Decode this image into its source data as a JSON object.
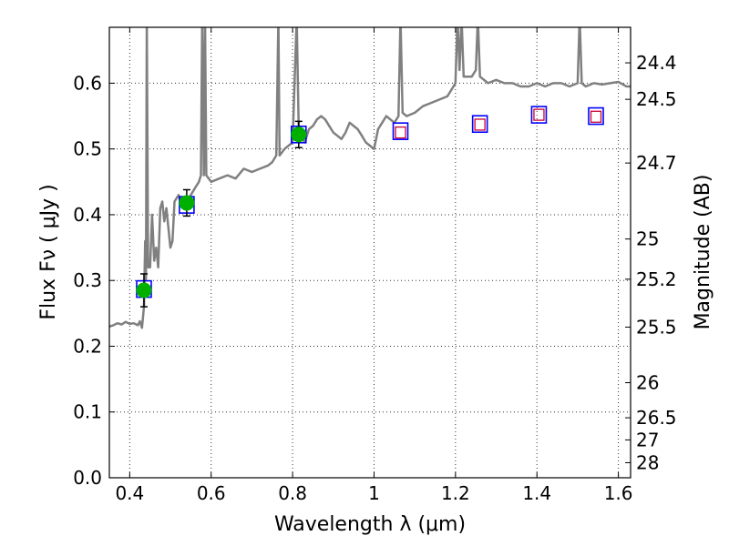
{
  "chart_data": {
    "type": "scatter",
    "xlabel": "Wavelength  λ (μm)",
    "ylabel": "Flux  Fν  ( μJy )",
    "ylabel_right": "Magnitude (AB)",
    "xlim": [
      0.35,
      1.63
    ],
    "ylim": [
      0.0,
      0.685
    ],
    "x_ticks": [
      0.4,
      0.6,
      0.8,
      1.0,
      1.2,
      1.4,
      1.6
    ],
    "x_tick_labels": [
      "0.4",
      "0.6",
      "0.8",
      "1",
      "1.2",
      "1.4",
      "1.6"
    ],
    "y_ticks": [
      0.0,
      0.1,
      0.2,
      0.3,
      0.4,
      0.5,
      0.6
    ],
    "y_tick_labels": [
      "0.0",
      "0.1",
      "0.2",
      "0.3",
      "0.4",
      "0.5",
      "0.6"
    ],
    "right_ticks": [
      {
        "mag": 24.4,
        "label": "24.4"
      },
      {
        "mag": 24.5,
        "label": "24.5"
      },
      {
        "mag": 24.7,
        "label": "24.7"
      },
      {
        "mag": 25.0,
        "label": "25"
      },
      {
        "mag": 25.2,
        "label": "25.2"
      },
      {
        "mag": 25.5,
        "label": "25.5"
      },
      {
        "mag": 26.0,
        "label": "26"
      },
      {
        "mag": 26.5,
        "label": "26.5"
      },
      {
        "mag": 27.0,
        "label": "27"
      },
      {
        "mag": 28.0,
        "label": "28"
      }
    ],
    "grid": true,
    "colors": {
      "spectrum": "#808080",
      "observed_fill": "#00b000",
      "model_box": "#0000ff",
      "upper_box": "#cc0033",
      "errorbar": "#000000"
    },
    "series": [
      {
        "kind": "spectrum",
        "points": [
          [
            0.35,
            0.23
          ],
          [
            0.36,
            0.232
          ],
          [
            0.37,
            0.235
          ],
          [
            0.38,
            0.233
          ],
          [
            0.39,
            0.237
          ],
          [
            0.4,
            0.234
          ],
          [
            0.41,
            0.235
          ],
          [
            0.42,
            0.232
          ],
          [
            0.425,
            0.238
          ],
          [
            0.43,
            0.228
          ],
          [
            0.435,
            0.26
          ],
          [
            0.438,
            0.36
          ],
          [
            0.44,
            0.3
          ],
          [
            0.442,
            0.7
          ],
          [
            0.445,
            0.32
          ],
          [
            0.45,
            0.32
          ],
          [
            0.455,
            0.4
          ],
          [
            0.46,
            0.33
          ],
          [
            0.465,
            0.35
          ],
          [
            0.47,
            0.32
          ],
          [
            0.475,
            0.41
          ],
          [
            0.48,
            0.42
          ],
          [
            0.485,
            0.39
          ],
          [
            0.49,
            0.41
          ],
          [
            0.5,
            0.35
          ],
          [
            0.505,
            0.36
          ],
          [
            0.51,
            0.42
          ],
          [
            0.52,
            0.43
          ],
          [
            0.53,
            0.41
          ],
          [
            0.54,
            0.42
          ],
          [
            0.55,
            0.43
          ],
          [
            0.56,
            0.44
          ],
          [
            0.57,
            0.45
          ],
          [
            0.575,
            0.46
          ],
          [
            0.578,
            0.7
          ],
          [
            0.582,
            0.46
          ],
          [
            0.585,
            0.7
          ],
          [
            0.588,
            0.46
          ],
          [
            0.6,
            0.45
          ],
          [
            0.62,
            0.455
          ],
          [
            0.64,
            0.46
          ],
          [
            0.66,
            0.455
          ],
          [
            0.68,
            0.47
          ],
          [
            0.7,
            0.465
          ],
          [
            0.72,
            0.47
          ],
          [
            0.74,
            0.475
          ],
          [
            0.75,
            0.48
          ],
          [
            0.76,
            0.49
          ],
          [
            0.765,
            0.7
          ],
          [
            0.768,
            0.49
          ],
          [
            0.78,
            0.5
          ],
          [
            0.8,
            0.51
          ],
          [
            0.81,
            0.7
          ],
          [
            0.815,
            0.53
          ],
          [
            0.82,
            0.52
          ],
          [
            0.83,
            0.51
          ],
          [
            0.84,
            0.53
          ],
          [
            0.85,
            0.535
          ],
          [
            0.86,
            0.545
          ],
          [
            0.87,
            0.55
          ],
          [
            0.88,
            0.545
          ],
          [
            0.89,
            0.535
          ],
          [
            0.9,
            0.525
          ],
          [
            0.91,
            0.52
          ],
          [
            0.92,
            0.515
          ],
          [
            0.93,
            0.525
          ],
          [
            0.94,
            0.54
          ],
          [
            0.95,
            0.535
          ],
          [
            0.96,
            0.53
          ],
          [
            0.97,
            0.52
          ],
          [
            0.98,
            0.51
          ],
          [
            0.99,
            0.505
          ],
          [
            1.0,
            0.5
          ],
          [
            1.01,
            0.53
          ],
          [
            1.02,
            0.54
          ],
          [
            1.03,
            0.55
          ],
          [
            1.04,
            0.545
          ],
          [
            1.05,
            0.54
          ],
          [
            1.06,
            0.55
          ],
          [
            1.065,
            0.7
          ],
          [
            1.07,
            0.555
          ],
          [
            1.08,
            0.55
          ],
          [
            1.1,
            0.555
          ],
          [
            1.12,
            0.565
          ],
          [
            1.14,
            0.57
          ],
          [
            1.16,
            0.575
          ],
          [
            1.18,
            0.58
          ],
          [
            1.19,
            0.59
          ],
          [
            1.2,
            0.6
          ],
          [
            1.205,
            0.7
          ],
          [
            1.21,
            0.62
          ],
          [
            1.215,
            0.7
          ],
          [
            1.22,
            0.61
          ],
          [
            1.24,
            0.61
          ],
          [
            1.25,
            0.62
          ],
          [
            1.255,
            0.7
          ],
          [
            1.26,
            0.61
          ],
          [
            1.28,
            0.6
          ],
          [
            1.3,
            0.605
          ],
          [
            1.32,
            0.6
          ],
          [
            1.34,
            0.6
          ],
          [
            1.36,
            0.595
          ],
          [
            1.38,
            0.595
          ],
          [
            1.4,
            0.6
          ],
          [
            1.42,
            0.595
          ],
          [
            1.44,
            0.6
          ],
          [
            1.46,
            0.6
          ],
          [
            1.48,
            0.595
          ],
          [
            1.5,
            0.6
          ],
          [
            1.505,
            0.7
          ],
          [
            1.51,
            0.6
          ],
          [
            1.52,
            0.595
          ],
          [
            1.54,
            0.6
          ],
          [
            1.56,
            0.598
          ],
          [
            1.58,
            0.6
          ],
          [
            1.6,
            0.602
          ],
          [
            1.62,
            0.595
          ],
          [
            1.63,
            0.595
          ]
        ]
      },
      {
        "kind": "observed",
        "points": [
          {
            "x": 0.435,
            "y": 0.285,
            "err": 0.025
          },
          {
            "x": 0.54,
            "y": 0.418,
            "err": 0.02
          },
          {
            "x": 0.815,
            "y": 0.522,
            "err": 0.02
          }
        ]
      },
      {
        "kind": "model",
        "points": [
          {
            "x": 0.435,
            "y": 0.287
          },
          {
            "x": 0.54,
            "y": 0.415
          },
          {
            "x": 0.815,
            "y": 0.522
          },
          {
            "x": 1.065,
            "y": 0.527
          },
          {
            "x": 1.26,
            "y": 0.538
          },
          {
            "x": 1.405,
            "y": 0.552
          },
          {
            "x": 1.545,
            "y": 0.55
          }
        ]
      },
      {
        "kind": "upper",
        "points": [
          {
            "x": 1.065,
            "y": 0.525
          },
          {
            "x": 1.26,
            "y": 0.537
          },
          {
            "x": 1.405,
            "y": 0.552
          },
          {
            "x": 1.545,
            "y": 0.549
          }
        ]
      }
    ]
  }
}
